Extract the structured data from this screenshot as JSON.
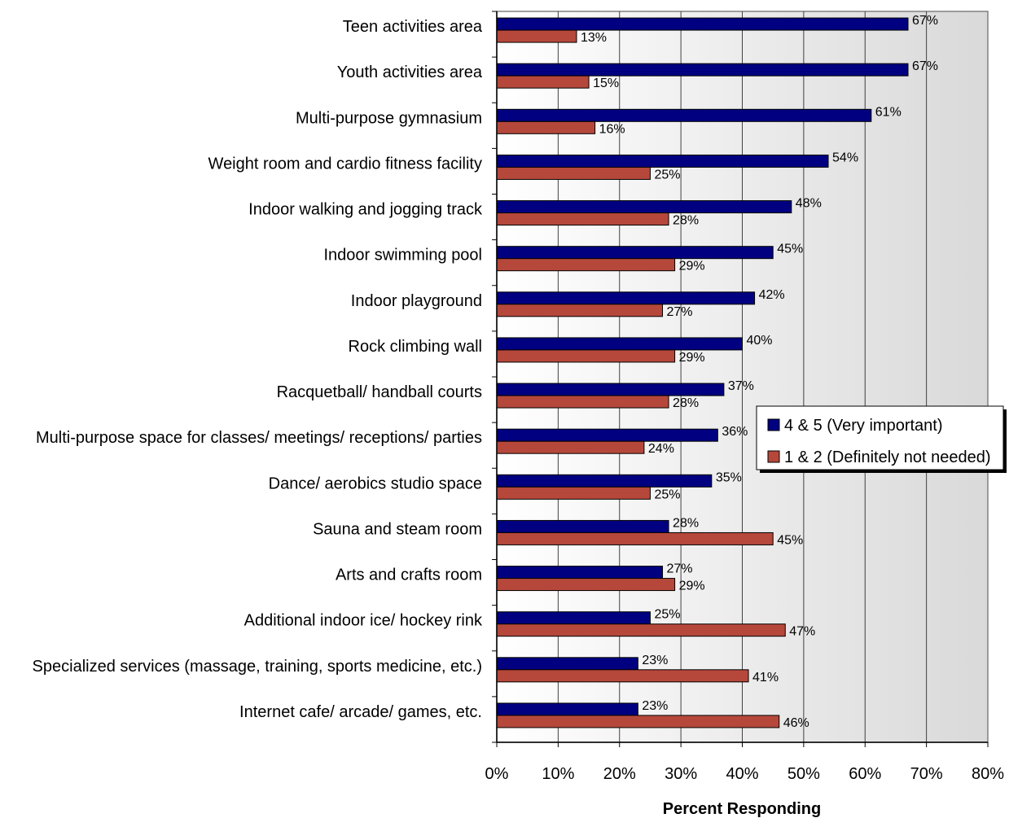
{
  "chart_data": {
    "type": "bar",
    "orientation": "horizontal",
    "categories": [
      "Teen activities area",
      "Youth activities area",
      "Multi-purpose gymnasium",
      "Weight room and cardio fitness facility",
      "Indoor walking and jogging track",
      "Indoor swimming pool",
      "Indoor playground",
      "Rock climbing wall",
      "Racquetball/ handball courts",
      "Multi-purpose space for classes/ meetings/ receptions/ parties",
      "Dance/ aerobics studio space",
      "Sauna and steam room",
      "Arts and crafts room",
      "Additional indoor ice/ hockey rink",
      "Specialized services (massage, training, sports medicine, etc.)",
      "Internet cafe/ arcade/ games, etc."
    ],
    "series": [
      {
        "name": "4 & 5 (Very important)",
        "color": "#000080",
        "values": [
          67,
          67,
          61,
          54,
          48,
          45,
          42,
          40,
          37,
          36,
          35,
          28,
          27,
          25,
          23,
          23
        ]
      },
      {
        "name": "1 & 2 (Definitely not needed)",
        "color": "#B5483B",
        "values": [
          13,
          15,
          16,
          25,
          28,
          29,
          27,
          29,
          28,
          24,
          25,
          45,
          29,
          47,
          41,
          46
        ]
      }
    ],
    "xlabel": "Percent Responding",
    "xlim": [
      0,
      80
    ],
    "xticks": [
      "0%",
      "10%",
      "20%",
      "30%",
      "40%",
      "50%",
      "60%",
      "70%",
      "80%"
    ],
    "value_suffix": "%",
    "grid": true,
    "legend_position": "right"
  }
}
